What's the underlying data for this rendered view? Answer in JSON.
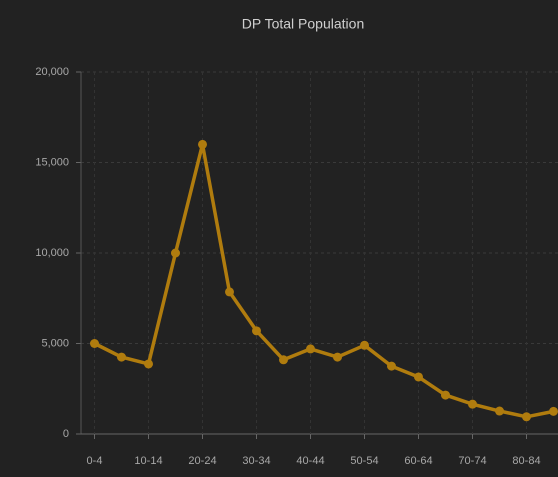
{
  "chart_data": {
    "type": "line",
    "title": "DP Total Population",
    "categories": [
      "0-4",
      null,
      "10-14",
      null,
      "20-24",
      null,
      "30-34",
      null,
      "40-44",
      null,
      "50-54",
      null,
      "60-64",
      null,
      "70-74",
      null,
      "80-84",
      null
    ],
    "series": [
      {
        "name": "DP Total Population",
        "color": "#b07c0e",
        "values": [
          5000,
          4250,
          3870,
          10000,
          16000,
          7850,
          5700,
          4100,
          4700,
          4250,
          4900,
          3750,
          3150,
          2150,
          1650,
          1270,
          950,
          1250
        ]
      }
    ],
    "ylim": [
      0,
      20000
    ],
    "yticks": [
      0,
      {
        "value": 5000,
        "label": "5,000"
      },
      {
        "value": 10000,
        "label": "10,000"
      },
      {
        "value": 15000,
        "label": "15,000"
      },
      {
        "value": 20000,
        "label": "20,000"
      }
    ],
    "grid": true
  }
}
